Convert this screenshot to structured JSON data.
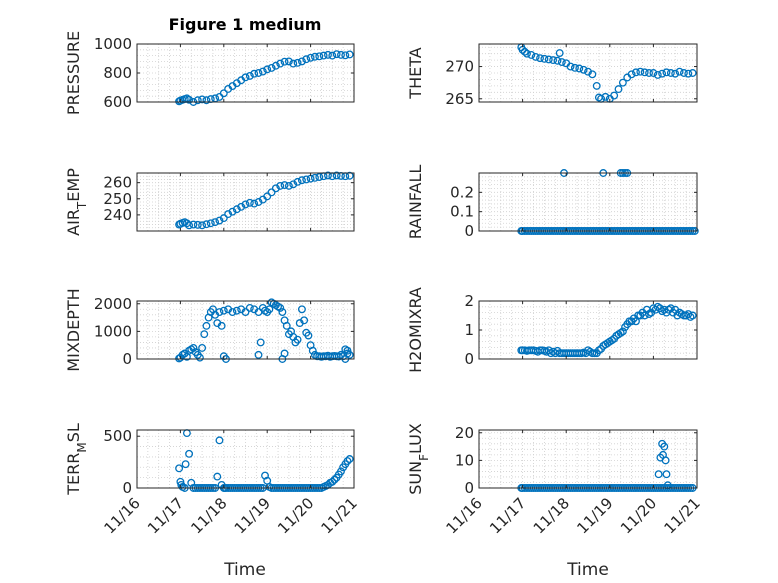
{
  "figure": {
    "title": "Figure 1 medium",
    "xlabel": "Time",
    "marker_color": "#0072bd",
    "x_ticks": [
      "11/16",
      "11/17",
      "11/18",
      "11/19",
      "11/20",
      "11/21"
    ]
  },
  "chart_data": [
    {
      "type": "scatter",
      "title": "Figure 1 medium",
      "ylabel": "PRESSURE",
      "xlim": [
        16.6,
        21.0
      ],
      "ylim": [
        600,
        1000
      ],
      "yticks": [
        600,
        800,
        1000
      ],
      "ytick_labels": [
        "600",
        "800",
        "1000"
      ],
      "grid": true,
      "x": [
        16.97,
        17.0,
        17.05,
        17.1,
        17.15,
        17.2,
        17.3,
        17.4,
        17.5,
        17.6,
        17.7,
        17.8,
        17.9,
        18.0,
        18.1,
        18.2,
        18.3,
        18.4,
        18.5,
        18.6,
        18.7,
        18.8,
        18.9,
        19.0,
        19.1,
        19.2,
        19.3,
        19.4,
        19.5,
        19.6,
        19.7,
        19.8,
        19.9,
        20.0,
        20.1,
        20.2,
        20.3,
        20.4,
        20.5,
        20.6,
        20.7,
        20.8,
        20.9
      ],
      "y": [
        605,
        610,
        615,
        620,
        625,
        615,
        600,
        612,
        618,
        612,
        620,
        625,
        635,
        660,
        690,
        710,
        730,
        750,
        770,
        780,
        795,
        800,
        810,
        825,
        835,
        850,
        865,
        878,
        880,
        865,
        870,
        880,
        895,
        905,
        912,
        915,
        920,
        925,
        920,
        930,
        925,
        922,
        928
      ]
    },
    {
      "type": "scatter",
      "ylabel": "THETA",
      "xlim": [
        16.6,
        21.0
      ],
      "ylim": [
        264.5,
        273.5
      ],
      "yticks": [
        265,
        270
      ],
      "ytick_labels": [
        "265",
        "270"
      ],
      "grid": true,
      "x": [
        16.97,
        17.0,
        17.05,
        17.1,
        17.2,
        17.3,
        17.4,
        17.5,
        17.6,
        17.7,
        17.8,
        17.85,
        17.9,
        18.0,
        18.1,
        18.2,
        18.3,
        18.4,
        18.5,
        18.6,
        18.7,
        18.75,
        18.8,
        18.9,
        19.0,
        19.1,
        19.2,
        19.3,
        19.4,
        19.5,
        19.6,
        19.7,
        19.8,
        19.9,
        20.0,
        20.1,
        20.2,
        20.3,
        20.4,
        20.5,
        20.6,
        20.7,
        20.8,
        20.9
      ],
      "y": [
        273.0,
        272.6,
        272.3,
        272.0,
        271.8,
        271.5,
        271.3,
        271.2,
        271.1,
        271.0,
        270.9,
        272.1,
        270.7,
        270.5,
        270.0,
        269.8,
        269.7,
        269.5,
        269.2,
        268.8,
        267.0,
        265.2,
        265.0,
        265.3,
        265.0,
        265.5,
        266.5,
        267.5,
        268.3,
        268.8,
        269.1,
        269.2,
        269.1,
        269.0,
        269.0,
        268.7,
        268.9,
        269.1,
        269.0,
        268.9,
        269.2,
        269.0,
        268.9,
        269.0
      ]
    },
    {
      "type": "scatter",
      "ylabel": "AIR_TEMP",
      "xlim": [
        16.6,
        21.0
      ],
      "ylim": [
        230,
        266
      ],
      "yticks": [
        240,
        250,
        260
      ],
      "ytick_labels": [
        "240",
        "250",
        "260"
      ],
      "grid": true,
      "x": [
        16.97,
        17.0,
        17.05,
        17.1,
        17.15,
        17.2,
        17.3,
        17.4,
        17.5,
        17.6,
        17.7,
        17.8,
        17.9,
        18.0,
        18.1,
        18.2,
        18.3,
        18.4,
        18.5,
        18.6,
        18.7,
        18.8,
        18.9,
        19.0,
        19.1,
        19.2,
        19.3,
        19.4,
        19.5,
        19.6,
        19.7,
        19.8,
        19.9,
        20.0,
        20.1,
        20.2,
        20.3,
        20.4,
        20.5,
        20.6,
        20.7,
        20.8,
        20.9
      ],
      "y": [
        234.0,
        234.5,
        235.0,
        235.5,
        234.8,
        233.5,
        234.0,
        233.8,
        233.5,
        234.2,
        234.8,
        235.5,
        236.5,
        238.0,
        240.5,
        242.0,
        243.5,
        245.0,
        246.5,
        247.5,
        247.0,
        248.0,
        249.5,
        251.5,
        254.0,
        256.5,
        258.0,
        258.5,
        258.0,
        259.0,
        260.5,
        261.5,
        262.0,
        262.5,
        263.0,
        263.5,
        264.0,
        264.5,
        264.0,
        264.5,
        264.2,
        264.0,
        264.3
      ]
    },
    {
      "type": "scatter",
      "ylabel": "RAINFALL",
      "xlim": [
        16.6,
        21.0
      ],
      "ylim": [
        0,
        0.3
      ],
      "yticks": [
        0,
        0.1,
        0.2
      ],
      "ytick_labels": [
        "0",
        "0.1",
        "0.2"
      ],
      "grid": true,
      "x": [
        16.97,
        17.0,
        17.05,
        17.1,
        17.15,
        17.2,
        17.25,
        17.3,
        17.35,
        17.4,
        17.45,
        17.5,
        17.55,
        17.6,
        17.65,
        17.7,
        17.75,
        17.8,
        17.85,
        17.9,
        17.95,
        18.0,
        18.05,
        18.1,
        18.15,
        18.2,
        18.25,
        18.3,
        18.35,
        18.4,
        18.45,
        18.5,
        18.55,
        18.6,
        18.65,
        18.7,
        18.75,
        18.8,
        18.85,
        18.9,
        18.95,
        19.0,
        19.05,
        19.1,
        19.15,
        19.2,
        19.25,
        19.3,
        19.35,
        19.4,
        19.45,
        19.5,
        19.55,
        19.6,
        19.65,
        19.7,
        19.75,
        19.8,
        19.85,
        19.9,
        19.95,
        20.0,
        20.05,
        20.1,
        20.15,
        20.2,
        20.25,
        20.3,
        20.35,
        20.4,
        20.45,
        20.5,
        20.55,
        20.6,
        20.65,
        20.7,
        20.75,
        20.8,
        20.85,
        20.9,
        20.95,
        17.95,
        18.85,
        19.25,
        19.3,
        19.35,
        19.4
      ],
      "y": [
        0,
        0,
        0,
        0,
        0,
        0,
        0,
        0,
        0,
        0,
        0,
        0,
        0,
        0,
        0,
        0,
        0,
        0,
        0,
        0,
        0,
        0,
        0,
        0,
        0,
        0,
        0,
        0,
        0,
        0,
        0,
        0,
        0,
        0,
        0,
        0,
        0,
        0,
        0,
        0,
        0,
        0,
        0,
        0,
        0,
        0,
        0,
        0,
        0,
        0,
        0,
        0,
        0,
        0,
        0,
        0,
        0,
        0,
        0,
        0,
        0,
        0,
        0,
        0,
        0,
        0,
        0,
        0,
        0,
        0,
        0,
        0,
        0,
        0,
        0,
        0,
        0,
        0,
        0,
        0,
        0,
        0.3,
        0.3,
        0.3,
        0.3,
        0.3,
        0.3
      ]
    },
    {
      "type": "scatter",
      "ylabel": "MIXDEPTH",
      "xlim": [
        16.6,
        21.0
      ],
      "ylim": [
        0,
        2100
      ],
      "yticks": [
        0,
        1000,
        2000
      ],
      "ytick_labels": [
        "0",
        "1000",
        "2000"
      ],
      "grid": true,
      "x": [
        16.97,
        17.0,
        17.05,
        17.1,
        17.15,
        17.2,
        17.25,
        17.3,
        17.35,
        17.4,
        17.45,
        17.5,
        17.55,
        17.6,
        17.65,
        17.7,
        17.75,
        17.8,
        17.85,
        17.9,
        17.95,
        18.0,
        18.1,
        18.2,
        18.3,
        18.4,
        18.5,
        18.6,
        18.7,
        18.8,
        18.9,
        18.95,
        19.0,
        19.05,
        19.1,
        19.15,
        19.2,
        19.25,
        19.3,
        19.35,
        19.4,
        19.45,
        19.5,
        19.55,
        19.6,
        19.65,
        19.7,
        19.75,
        19.8,
        19.85,
        19.9,
        19.95,
        20.0,
        20.05,
        20.1,
        20.15,
        20.2,
        20.25,
        20.3,
        20.35,
        20.4,
        20.45,
        20.5,
        20.55,
        20.6,
        20.65,
        20.7,
        20.75,
        20.8,
        20.85,
        20.9,
        18.0,
        18.05,
        18.8,
        18.85,
        19.35,
        19.4,
        20.8,
        20.85
      ],
      "y": [
        20,
        50,
        150,
        200,
        80,
        300,
        350,
        400,
        250,
        150,
        50,
        400,
        900,
        1200,
        1500,
        1700,
        1800,
        1600,
        1300,
        1700,
        1200,
        1750,
        1800,
        1700,
        1750,
        1800,
        1700,
        1850,
        1800,
        1700,
        1850,
        1750,
        1700,
        1800,
        2050,
        2000,
        1950,
        1900,
        1850,
        1700,
        1400,
        1200,
        900,
        1000,
        800,
        600,
        700,
        1300,
        1800,
        1400,
        950,
        850,
        500,
        300,
        150,
        100,
        100,
        80,
        100,
        100,
        120,
        80,
        100,
        110,
        100,
        90,
        150,
        100,
        350,
        200,
        150,
        100,
        0,
        150,
        600,
        0,
        200,
        0,
        300
      ]
    },
    {
      "type": "scatter",
      "ylabel": "H2OMIXRA",
      "xlim": [
        16.6,
        21.0
      ],
      "ylim": [
        0,
        2
      ],
      "yticks": [
        0,
        1,
        2
      ],
      "ytick_labels": [
        "0",
        "1",
        "2"
      ],
      "grid": true,
      "x": [
        16.97,
        17.0,
        17.05,
        17.1,
        17.15,
        17.2,
        17.25,
        17.3,
        17.35,
        17.4,
        17.45,
        17.5,
        17.55,
        17.6,
        17.65,
        17.7,
        17.75,
        17.8,
        17.85,
        17.9,
        17.95,
        18.0,
        18.05,
        18.1,
        18.15,
        18.2,
        18.25,
        18.3,
        18.35,
        18.4,
        18.45,
        18.5,
        18.55,
        18.6,
        18.65,
        18.7,
        18.75,
        18.8,
        18.85,
        18.9,
        18.95,
        19.0,
        19.05,
        19.1,
        19.15,
        19.2,
        19.25,
        19.3,
        19.35,
        19.4,
        19.45,
        19.5,
        19.55,
        19.6,
        19.65,
        19.7,
        19.75,
        19.8,
        19.85,
        19.9,
        19.95,
        20.0,
        20.05,
        20.1,
        20.15,
        20.2,
        20.25,
        20.3,
        20.35,
        20.4,
        20.45,
        20.5,
        20.55,
        20.6,
        20.65,
        20.7,
        20.75,
        20.8,
        20.85,
        20.9
      ],
      "y": [
        0.3,
        0.3,
        0.3,
        0.28,
        0.3,
        0.3,
        0.3,
        0.28,
        0.25,
        0.3,
        0.3,
        0.28,
        0.25,
        0.3,
        0.2,
        0.25,
        0.2,
        0.28,
        0.2,
        0.2,
        0.2,
        0.2,
        0.2,
        0.2,
        0.2,
        0.2,
        0.2,
        0.2,
        0.2,
        0.22,
        0.2,
        0.3,
        0.25,
        0.2,
        0.2,
        0.2,
        0.3,
        0.35,
        0.45,
        0.5,
        0.55,
        0.6,
        0.65,
        0.7,
        0.8,
        0.85,
        0.9,
        0.95,
        1.1,
        1.2,
        1.3,
        1.3,
        1.4,
        1.3,
        1.5,
        1.5,
        1.6,
        1.5,
        1.7,
        1.55,
        1.6,
        1.75,
        1.7,
        1.8,
        1.75,
        1.65,
        1.7,
        1.6,
        1.7,
        1.75,
        1.6,
        1.7,
        1.5,
        1.6,
        1.55,
        1.5,
        1.5,
        1.55,
        1.45,
        1.5
      ]
    },
    {
      "type": "scatter",
      "ylabel": "TERR_MSL",
      "xlim": [
        16.6,
        21.0
      ],
      "ylim": [
        0,
        560
      ],
      "yticks": [
        0,
        500
      ],
      "ytick_labels": [
        "0",
        "500"
      ],
      "grid": true,
      "x": [
        16.97,
        17.0,
        17.02,
        17.05,
        17.1,
        17.12,
        17.15,
        17.2,
        17.25,
        17.3,
        17.35,
        17.4,
        17.45,
        17.5,
        17.55,
        17.6,
        17.65,
        17.7,
        17.75,
        17.8,
        17.85,
        17.9,
        17.95,
        18.0,
        18.02,
        18.05,
        18.1,
        18.15,
        18.2,
        18.25,
        18.3,
        18.35,
        18.4,
        18.45,
        18.5,
        18.55,
        18.6,
        18.65,
        18.7,
        18.75,
        18.8,
        18.85,
        18.9,
        18.95,
        19.0,
        19.05,
        19.1,
        19.15,
        19.2,
        19.25,
        19.3,
        19.35,
        19.4,
        19.45,
        19.5,
        19.55,
        19.6,
        19.65,
        19.7,
        19.75,
        19.8,
        19.85,
        19.9,
        19.95,
        20.0,
        20.05,
        20.1,
        20.15,
        20.2,
        20.25,
        20.3,
        20.35,
        20.4,
        20.45,
        20.5,
        20.55,
        20.6,
        20.65,
        20.7,
        20.75,
        20.8,
        20.85,
        20.9
      ],
      "y": [
        190,
        60,
        30,
        10,
        0,
        230,
        530,
        330,
        50,
        0,
        0,
        0,
        0,
        0,
        0,
        0,
        0,
        0,
        0,
        0,
        110,
        460,
        30,
        0,
        0,
        0,
        0,
        0,
        0,
        0,
        0,
        0,
        0,
        0,
        0,
        0,
        0,
        0,
        0,
        0,
        0,
        0,
        0,
        120,
        70,
        10,
        0,
        0,
        0,
        0,
        0,
        0,
        0,
        0,
        0,
        0,
        0,
        0,
        0,
        0,
        0,
        0,
        0,
        0,
        0,
        0,
        0,
        0,
        0,
        0,
        10,
        20,
        30,
        50,
        60,
        80,
        100,
        130,
        160,
        200,
        230,
        260,
        280
      ]
    },
    {
      "type": "scatter",
      "ylabel": "SUN_FLUX",
      "xlim": [
        16.6,
        21.0
      ],
      "ylim": [
        0,
        21
      ],
      "yticks": [
        0,
        10,
        20
      ],
      "ytick_labels": [
        "0",
        "10",
        "20"
      ],
      "grid": true,
      "x": [
        16.97,
        17.0,
        17.05,
        17.1,
        17.15,
        17.2,
        17.25,
        17.3,
        17.35,
        17.4,
        17.45,
        17.5,
        17.55,
        17.6,
        17.65,
        17.7,
        17.75,
        17.8,
        17.85,
        17.9,
        17.95,
        18.0,
        18.05,
        18.1,
        18.15,
        18.2,
        18.25,
        18.3,
        18.35,
        18.4,
        18.45,
        18.5,
        18.55,
        18.6,
        18.65,
        18.7,
        18.75,
        18.8,
        18.85,
        18.9,
        18.95,
        19.0,
        19.05,
        19.1,
        19.15,
        19.2,
        19.25,
        19.3,
        19.35,
        19.4,
        19.45,
        19.5,
        19.55,
        19.6,
        19.65,
        19.7,
        19.75,
        19.8,
        19.85,
        19.9,
        19.95,
        20.0,
        20.05,
        20.1,
        20.15,
        20.2,
        20.25,
        20.3,
        20.35,
        20.4,
        20.45,
        20.5,
        20.55,
        20.6,
        20.65,
        20.7,
        20.75,
        20.8,
        20.85,
        20.9,
        20.12,
        20.16,
        20.2,
        20.22,
        20.25,
        20.28,
        20.3,
        20.33
      ],
      "y": [
        0,
        0,
        0,
        0,
        0,
        0,
        0,
        0,
        0,
        0,
        0,
        0,
        0,
        0,
        0,
        0,
        0,
        0,
        0,
        0,
        0,
        0,
        0,
        0,
        0,
        0,
        0,
        0,
        0,
        0,
        0,
        0,
        0,
        0,
        0,
        0,
        0,
        0,
        0,
        0,
        0,
        0,
        0,
        0,
        0,
        0,
        0,
        0,
        0,
        0,
        0,
        0,
        0,
        0,
        0,
        0,
        0,
        0,
        0,
        0,
        0,
        0,
        0,
        0,
        0,
        0,
        0,
        0,
        0,
        0,
        0,
        0,
        0,
        0,
        0,
        0,
        0,
        0,
        0,
        0,
        5,
        11,
        16,
        12,
        15,
        10,
        5,
        1
      ]
    }
  ]
}
